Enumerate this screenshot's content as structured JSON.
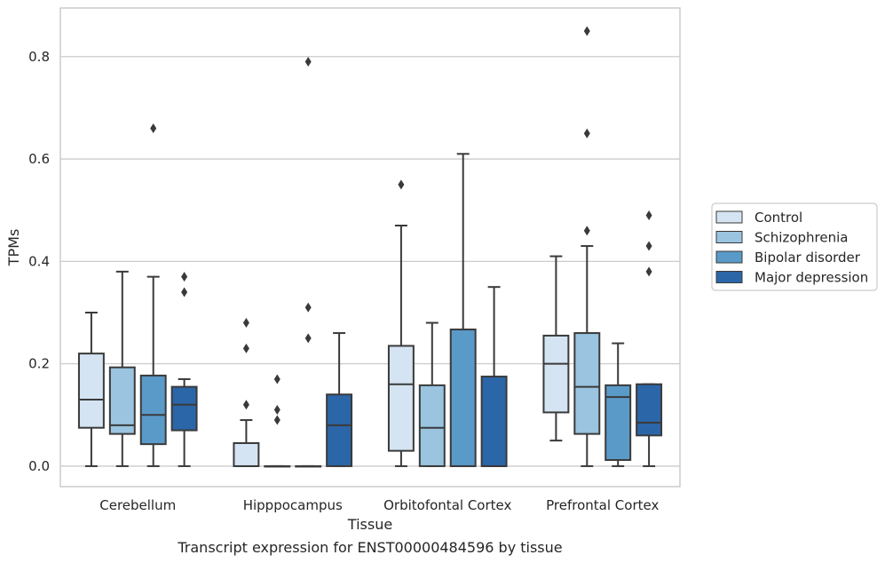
{
  "chart_data": {
    "type": "box",
    "xlabel": "Tissue",
    "ylabel": "TPMs",
    "caption": "Transcript expression for ENST00000484596 by tissue",
    "categories": [
      "Cerebellum",
      "Hipppocampus",
      "Orbitofontal Cortex",
      "Prefrontal Cortex"
    ],
    "ylim": [
      -0.04,
      0.895
    ],
    "yticks": [
      0.0,
      0.2,
      0.4,
      0.6,
      0.8
    ],
    "ytick_labels": [
      "0.0",
      "0.2",
      "0.4",
      "0.6",
      "0.8"
    ],
    "grid": "horizontal",
    "legend_position": "right",
    "series": [
      {
        "name": "Control",
        "color": "#d4e4f2",
        "boxes": [
          {
            "whislo": 0.0,
            "q1": 0.075,
            "med": 0.13,
            "q3": 0.22,
            "whishi": 0.3,
            "fliers": []
          },
          {
            "whislo": 0.0,
            "q1": 0.0,
            "med": 0.0,
            "q3": 0.045,
            "whishi": 0.09,
            "fliers": [
              0.12,
              0.23,
              0.28
            ]
          },
          {
            "whislo": 0.0,
            "q1": 0.03,
            "med": 0.16,
            "q3": 0.235,
            "whishi": 0.47,
            "fliers": [
              0.55
            ]
          },
          {
            "whislo": 0.05,
            "q1": 0.105,
            "med": 0.2,
            "q3": 0.255,
            "whishi": 0.41,
            "fliers": []
          }
        ]
      },
      {
        "name": "Schizophrenia",
        "color": "#9ac4e0",
        "boxes": [
          {
            "whislo": 0.0,
            "q1": 0.063,
            "med": 0.08,
            "q3": 0.193,
            "whishi": 0.38,
            "fliers": []
          },
          {
            "whislo": 0.0,
            "q1": 0.0,
            "med": 0.0,
            "q3": 0.0,
            "whishi": 0.0,
            "fliers": [
              0.09,
              0.11,
              0.17
            ]
          },
          {
            "whislo": 0.0,
            "q1": 0.0,
            "med": 0.075,
            "q3": 0.158,
            "whishi": 0.28,
            "fliers": []
          },
          {
            "whislo": 0.0,
            "q1": 0.063,
            "med": 0.155,
            "q3": 0.26,
            "whishi": 0.43,
            "fliers": [
              0.46,
              0.65,
              0.85
            ]
          }
        ]
      },
      {
        "name": "Bipolar disorder",
        "color": "#5a9ac9",
        "boxes": [
          {
            "whislo": 0.0,
            "q1": 0.043,
            "med": 0.1,
            "q3": 0.177,
            "whishi": 0.37,
            "fliers": [
              0.66
            ]
          },
          {
            "whislo": 0.0,
            "q1": 0.0,
            "med": 0.0,
            "q3": 0.0,
            "whishi": 0.0,
            "fliers": [
              0.25,
              0.31,
              0.79
            ]
          },
          {
            "whislo": 0.0,
            "q1": 0.0,
            "med": 0.0,
            "q3": 0.267,
            "whishi": 0.61,
            "fliers": []
          },
          {
            "whislo": 0.0,
            "q1": 0.012,
            "med": 0.135,
            "q3": 0.158,
            "whishi": 0.24,
            "fliers": []
          }
        ]
      },
      {
        "name": "Major depression",
        "color": "#2b66a8",
        "boxes": [
          {
            "whislo": 0.0,
            "q1": 0.07,
            "med": 0.12,
            "q3": 0.155,
            "whishi": 0.17,
            "fliers": [
              0.34,
              0.37
            ]
          },
          {
            "whislo": 0.0,
            "q1": 0.0,
            "med": 0.08,
            "q3": 0.14,
            "whishi": 0.26,
            "fliers": []
          },
          {
            "whislo": 0.0,
            "q1": 0.0,
            "med": 0.0,
            "q3": 0.175,
            "whishi": 0.35,
            "fliers": []
          },
          {
            "whislo": 0.0,
            "q1": 0.06,
            "med": 0.085,
            "q3": 0.16,
            "whishi": 0.16,
            "fliers": [
              0.38,
              0.43,
              0.49
            ]
          }
        ]
      }
    ]
  }
}
